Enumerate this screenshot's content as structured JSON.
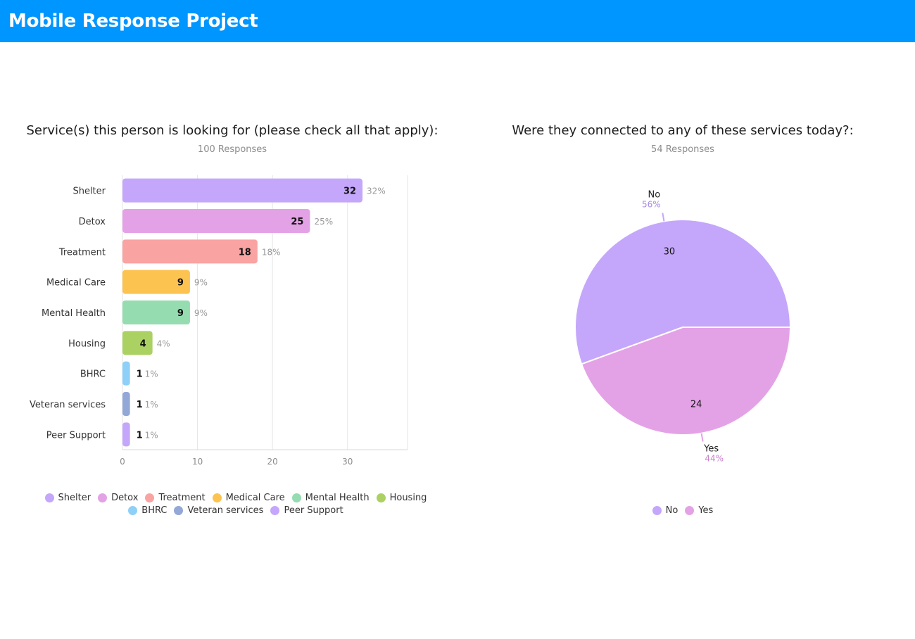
{
  "header": {
    "title": "Mobile Response Project"
  },
  "chart_data": [
    {
      "type": "bar",
      "orientation": "horizontal",
      "title": "Service(s) this person is looking for (please check all that apply):",
      "subtitle": "100 Responses",
      "categories": [
        "Shelter",
        "Detox",
        "Treatment",
        "Medical Care",
        "Mental Health",
        "Housing",
        "BHRC",
        "Veteran services",
        "Peer Support"
      ],
      "values": [
        32,
        25,
        18,
        9,
        9,
        4,
        1,
        1,
        1
      ],
      "percent_labels": [
        "32%",
        "25%",
        "18%",
        "9%",
        "9%",
        "4%",
        "1%",
        "1%",
        "1%"
      ],
      "colors": [
        "#c4a7fb",
        "#e4a2e6",
        "#f9a3a3",
        "#fdc351",
        "#95dcb0",
        "#abd163",
        "#8ed0f8",
        "#93a8d7",
        "#c4a7fb"
      ],
      "xlim": [
        0,
        38
      ],
      "xticks": [
        0,
        10,
        20,
        30
      ],
      "grid": true,
      "legend": "bottom"
    },
    {
      "type": "pie",
      "title": "Were they connected to any of these services today?:",
      "subtitle": "54 Responses",
      "categories": [
        "No",
        "Yes"
      ],
      "values": [
        30,
        24
      ],
      "percent_labels": [
        "56%",
        "44%"
      ],
      "colors": [
        "#c4a7fb",
        "#e4a2e6"
      ],
      "legend": "bottom"
    }
  ]
}
